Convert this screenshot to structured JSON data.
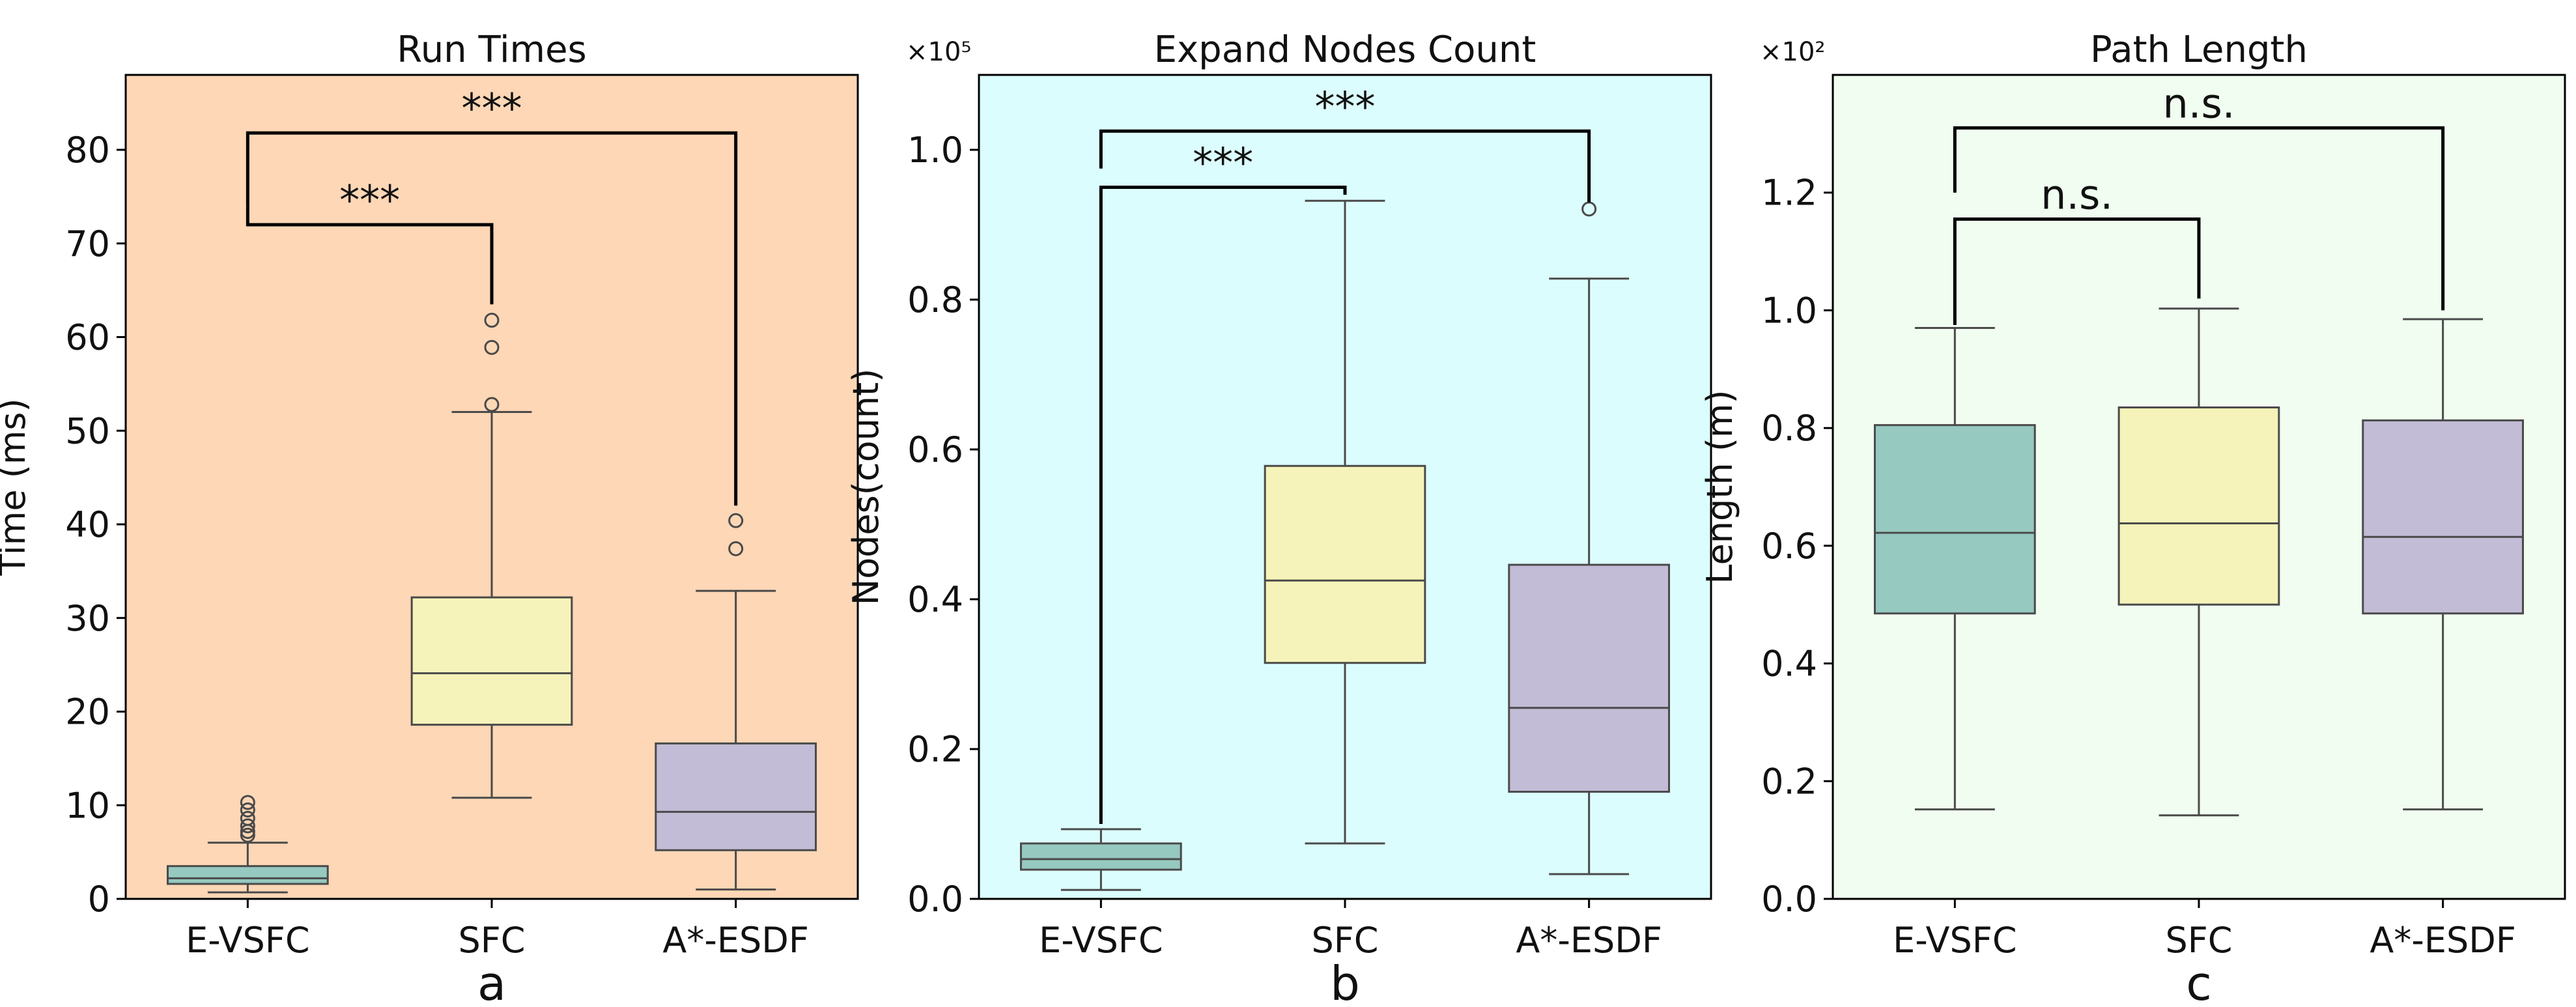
{
  "chart_data": [
    {
      "type": "box",
      "panel_label": "a",
      "title": "Run Times",
      "xlabel": "",
      "ylabel": "Time (ms)",
      "ylim": [
        0,
        88
      ],
      "yticks": [
        0,
        10,
        20,
        30,
        40,
        50,
        60,
        70,
        80
      ],
      "ytick_labels": [
        "0",
        "10",
        "20",
        "30",
        "40",
        "50",
        "60",
        "70",
        "80"
      ],
      "axis_multiplier": "",
      "background_color": "#fdd7b6",
      "categories": [
        "E-VSFC",
        "SFC",
        "A*-ESDF"
      ],
      "box_colors": [
        "#96c9c0",
        "#f5f3b9",
        "#c2bcd6"
      ],
      "boxes": [
        {
          "whisker_low": 0.7,
          "q1": 1.6,
          "median": 2.2,
          "q3": 3.5,
          "whisker_high": 6.0,
          "outliers": [
            6.8,
            7.2,
            7.8,
            8.6,
            9.5,
            10.3
          ]
        },
        {
          "whisker_low": 10.8,
          "q1": 18.6,
          "median": 24.1,
          "q3": 32.2,
          "whisker_high": 52.0,
          "outliers": [
            52.8,
            58.9,
            61.8
          ]
        },
        {
          "whisker_low": 1.0,
          "q1": 5.2,
          "median": 9.3,
          "q3": 16.6,
          "whisker_high": 32.9,
          "outliers": [
            37.4,
            40.4
          ]
        }
      ],
      "significance": [
        {
          "from": 0,
          "to": 1,
          "label": "***",
          "y": 72.0,
          "left_drop": 74.0,
          "right_drop": 63.5
        },
        {
          "from": 0,
          "to": 2,
          "label": "***",
          "y": 81.8,
          "left_drop": 74.0,
          "right_drop": 42.0
        }
      ]
    },
    {
      "type": "box",
      "panel_label": "b",
      "title": "Expand Nodes Count",
      "xlabel": "",
      "ylabel": "Nodes(count)",
      "ylim": [
        0,
        1.1
      ],
      "yticks": [
        0,
        0.2,
        0.4,
        0.6,
        0.8,
        1.0
      ],
      "ytick_labels": [
        "0.0",
        "0.2",
        "0.4",
        "0.6",
        "0.8",
        "1.0"
      ],
      "axis_multiplier": "×10⁵",
      "background_color": "#dcfdfd",
      "categories": [
        "E-VSFC",
        "SFC",
        "A*-ESDF"
      ],
      "box_colors": [
        "#96c9c0",
        "#f5f3b9",
        "#c2bcd6"
      ],
      "boxes": [
        {
          "whisker_low": 0.012,
          "q1": 0.039,
          "median": 0.053,
          "q3": 0.074,
          "whisker_high": 0.093,
          "outliers": []
        },
        {
          "whisker_low": 0.074,
          "q1": 0.315,
          "median": 0.425,
          "q3": 0.578,
          "whisker_high": 0.932,
          "outliers": []
        },
        {
          "whisker_low": 0.033,
          "q1": 0.143,
          "median": 0.255,
          "q3": 0.446,
          "whisker_high": 0.828,
          "outliers": [
            0.921
          ]
        }
      ],
      "significance": [
        {
          "from": 0,
          "to": 1,
          "label": "***",
          "y": 0.95,
          "left_drop": 0.1,
          "right_drop": 0.94
        },
        {
          "from": 0,
          "to": 2,
          "label": "***",
          "y": 1.025,
          "left_drop": 0.975,
          "right_drop": 0.93
        }
      ]
    },
    {
      "type": "box",
      "panel_label": "c",
      "title": "Path Length",
      "xlabel": "",
      "ylabel": "Length (m)",
      "ylim": [
        0,
        1.4
      ],
      "yticks": [
        0,
        0.2,
        0.4,
        0.6,
        0.8,
        1.0,
        1.2
      ],
      "ytick_labels": [
        "0.0",
        "0.2",
        "0.4",
        "0.6",
        "0.8",
        "1.0",
        "1.2"
      ],
      "axis_multiplier": "×10²",
      "background_color": "#f0fdf0",
      "categories": [
        "E-VSFC",
        "SFC",
        "A*-ESDF"
      ],
      "box_colors": [
        "#96c9c0",
        "#f5f3b9",
        "#c2bcd6"
      ],
      "boxes": [
        {
          "whisker_low": 0.152,
          "q1": 0.485,
          "median": 0.622,
          "q3": 0.805,
          "whisker_high": 0.97,
          "outliers": []
        },
        {
          "whisker_low": 0.142,
          "q1": 0.5,
          "median": 0.638,
          "q3": 0.835,
          "whisker_high": 1.003,
          "outliers": []
        },
        {
          "whisker_low": 0.152,
          "q1": 0.485,
          "median": 0.615,
          "q3": 0.813,
          "whisker_high": 0.985,
          "outliers": []
        }
      ],
      "significance": [
        {
          "from": 0,
          "to": 1,
          "label": "n.s.",
          "y": 1.155,
          "left_drop": 0.975,
          "right_drop": 1.02
        },
        {
          "from": 0,
          "to": 2,
          "label": "n.s.",
          "y": 1.31,
          "left_drop": 1.2,
          "right_drop": 1.0
        }
      ]
    }
  ]
}
